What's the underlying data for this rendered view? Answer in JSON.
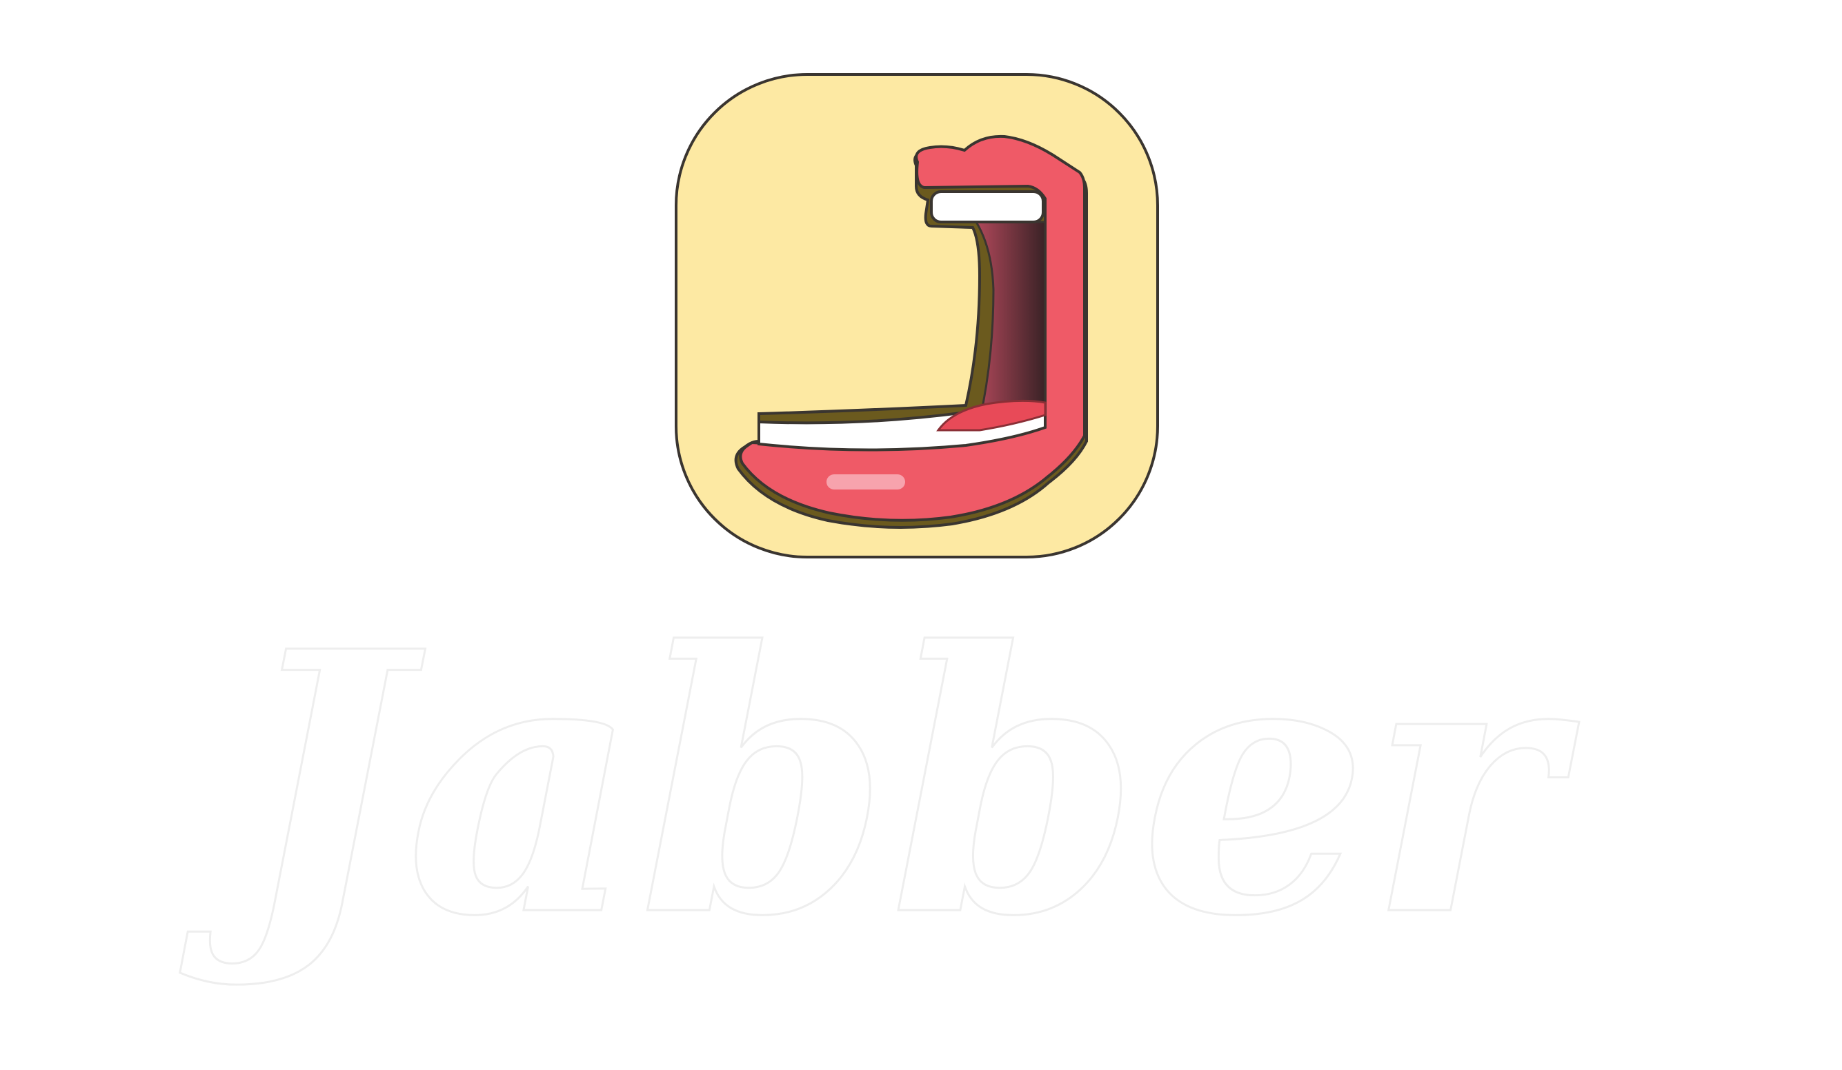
{
  "app": {
    "name": "Jabber"
  },
  "logo": {
    "icon": "mouth-j-icon",
    "tile_color": "#fde9a3",
    "tile_border_color": "#3a3530",
    "lip_color": "#ef5a67",
    "lip_shadow_color": "#6b5a1e",
    "tooth_color": "#ffffff",
    "throat_color": "#4a2a2f",
    "tongue_color": "#e84a58",
    "wordmark_fill": "#ffffff",
    "wordmark_stroke": "#eeeeee"
  }
}
